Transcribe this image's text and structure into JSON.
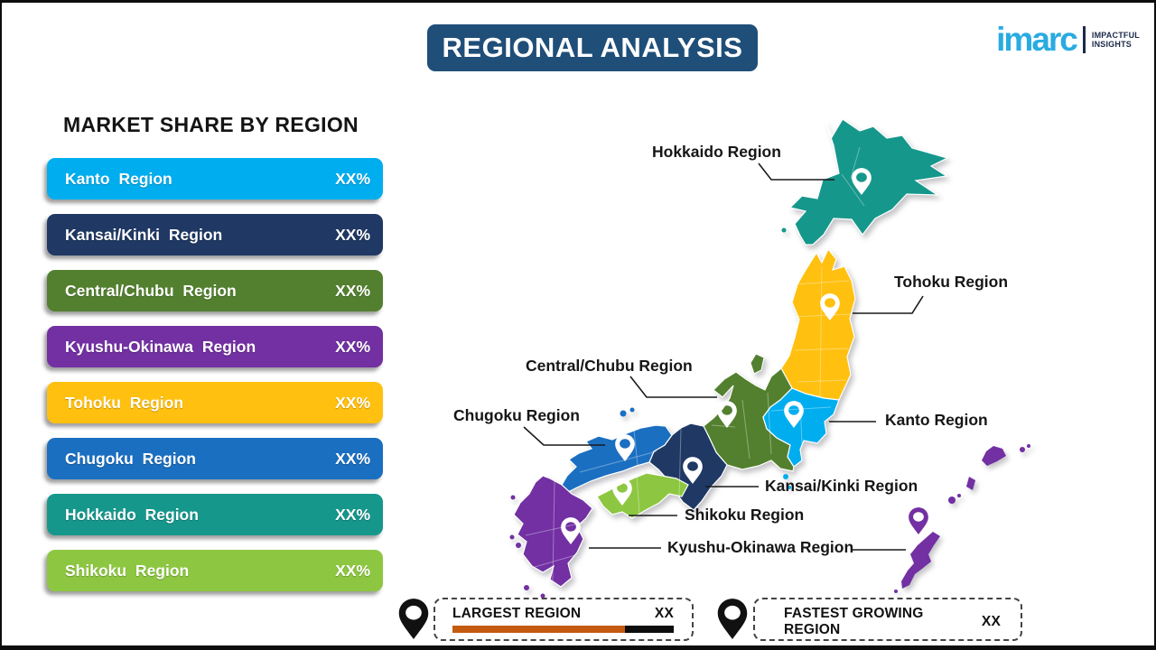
{
  "title": "REGIONAL ANALYSIS",
  "logo": {
    "brand": "imarc",
    "tagline1": "IMPACTFUL",
    "tagline2": "INSIGHTS"
  },
  "panel": {
    "heading": "MARKET SHARE BY REGION",
    "items": [
      {
        "label": "Kanto Region",
        "value": "XX%",
        "color": "#00AEEF"
      },
      {
        "label": "Kansai/Kinki Region",
        "value": "XX%",
        "color": "#1F3864"
      },
      {
        "label": "Central/Chubu Region",
        "value": "XX%",
        "color": "#53802F"
      },
      {
        "label": "Kyushu-Okinawa Region",
        "value": "XX%",
        "color": "#7230A3"
      },
      {
        "label": "Tohoku Region",
        "value": "XX%",
        "color": "#FFC010"
      },
      {
        "label": "Chugoku Region",
        "value": "XX%",
        "color": "#1B6FC1"
      },
      {
        "label": "Hokkaido Region",
        "value": "XX%",
        "color": "#16978C"
      },
      {
        "label": "Shikoku Region",
        "value": "XX%",
        "color": "#8DC741"
      }
    ]
  },
  "map": {
    "labels": {
      "hokkaido": "Hokkaido Region",
      "tohoku": "Tohoku Region",
      "chubu": "Central/Chubu Region",
      "kanto": "Kanto Region",
      "chugoku": "Chugoku Region",
      "kansai": "Kansai/Kinki Region",
      "shikoku": "Shikoku Region",
      "kyushu": "Kyushu-Okinawa Region"
    }
  },
  "colors": {
    "kanto": "#00AEEF",
    "kansai": "#1F3864",
    "chubu": "#53802F",
    "kyushu": "#7230A3",
    "tohoku": "#FFC010",
    "chugoku": "#1B6FC1",
    "hokkaido": "#16978C",
    "shikoku": "#8DC741",
    "title_bg": "#1F4E79",
    "brand_blue": "#29ABE2",
    "tagline_navy": "#1B2A4A",
    "pin_white": "#FFFFFF",
    "pin_black": "#111111",
    "largest_bar": "#C55A11",
    "fastest_bar": "#305E9C"
  },
  "legend": {
    "largest": {
      "label": "LARGEST REGION",
      "value": "XX",
      "fill_width": "78%"
    },
    "fastest": {
      "label": "FASTEST GROWING REGION",
      "value": "XX",
      "fill_width": "62%"
    }
  }
}
